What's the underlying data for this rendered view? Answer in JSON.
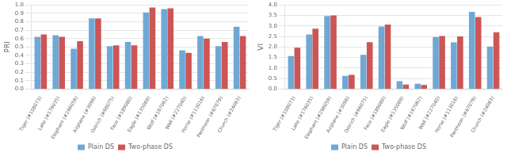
{
  "chart_data": [
    {
      "type": "bar",
      "ylabel": "PRI",
      "categories": [
        "Tiger (#108073)",
        "Lake (#176035)",
        "Elephant (#296059)",
        "Airplane (#3096)",
        "Ostrich (#66075)",
        "Face (#189080)",
        "Eagle (#135069)",
        "Wolf (#167062)",
        "Wall (#227040)",
        "Horse (#113016)",
        "Pantheon (#67079)",
        "Church (#24063)"
      ],
      "series": [
        {
          "name": "Plain DS",
          "color": "#6FA8D5",
          "values": [
            0.62,
            0.64,
            0.48,
            0.84,
            0.51,
            0.56,
            0.91,
            0.95,
            0.46,
            0.63,
            0.51,
            0.74
          ]
        },
        {
          "name": "Two-phase DS",
          "color": "#CC5555",
          "values": [
            0.65,
            0.62,
            0.57,
            0.84,
            0.52,
            0.52,
            0.97,
            0.96,
            0.43,
            0.6,
            0.56,
            0.63
          ]
        }
      ],
      "ylim": [
        0,
        1.0
      ],
      "yticks": [
        {
          "value": 0,
          "label": "0.0"
        },
        0.1,
        0.2,
        0.3,
        0.4,
        0.5,
        0.6,
        0.7,
        0.8,
        0.9,
        {
          "value": 1.0,
          "label": "1.0"
        }
      ],
      "grid": true,
      "legend": "bottom"
    },
    {
      "type": "bar",
      "ylabel": "VI",
      "categories": [
        "Tiger (#108073)",
        "Lake (#176035)",
        "Elephant (#296059)",
        "Airplane (#3096)",
        "Ostrich (#66075)",
        "Face (#189080)",
        "Eagle (#135069)",
        "Wolf (#167062)",
        "Wall (#227040)",
        "Horse (#113016)",
        "Pantheon (#67079)",
        "Church (#24063)"
      ],
      "series": [
        {
          "name": "Plain DS",
          "color": "#6FA8D5",
          "values": [
            1.57,
            2.6,
            3.47,
            0.63,
            1.63,
            2.97,
            0.38,
            0.25,
            2.47,
            2.22,
            3.67,
            2.02
          ]
        },
        {
          "name": "Two-phase DS",
          "color": "#CC5555",
          "values": [
            1.97,
            2.87,
            3.5,
            0.68,
            2.23,
            3.07,
            0.22,
            0.2,
            2.52,
            2.5,
            3.42,
            2.7
          ]
        }
      ],
      "ylim": [
        0,
        4.0
      ],
      "yticks": [
        {
          "value": 0,
          "label": "0.0"
        },
        0.5,
        {
          "value": 1.0,
          "label": "1.0"
        },
        1.5,
        {
          "value": 2.0,
          "label": "2.0"
        },
        2.5,
        {
          "value": 3.0,
          "label": "3.0"
        },
        3.5,
        {
          "value": 4.0,
          "label": "4.0"
        }
      ],
      "grid": true,
      "legend": "bottom"
    }
  ]
}
